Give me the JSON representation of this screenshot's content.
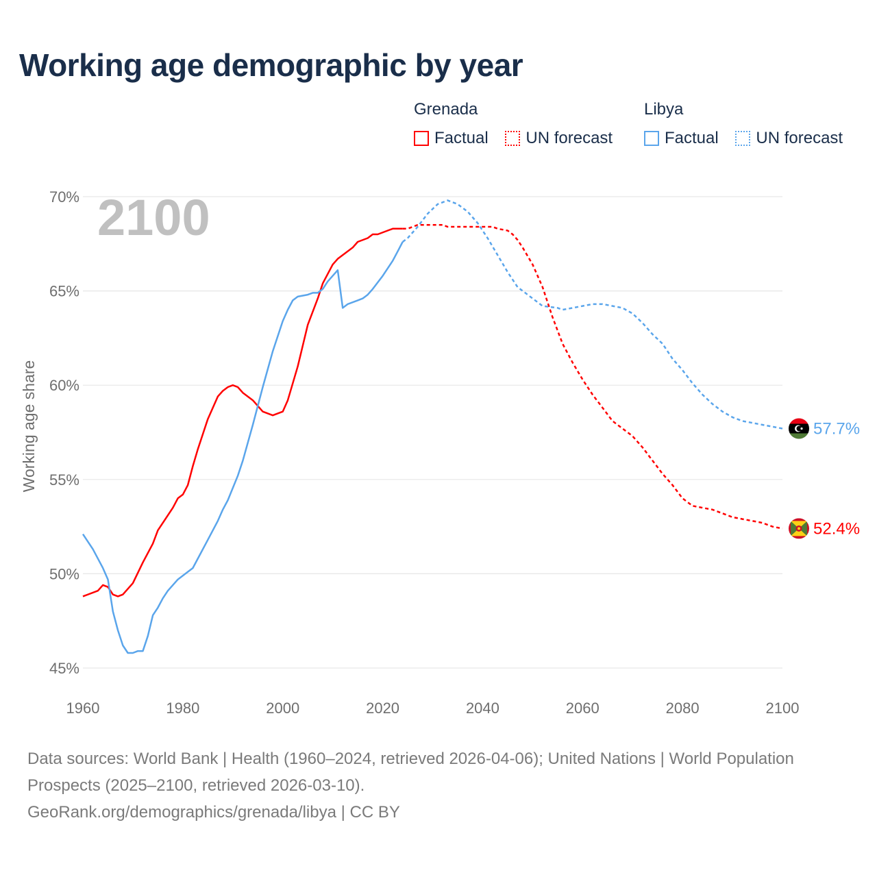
{
  "title": "Working age demographic by year",
  "legend": {
    "groups": [
      {
        "name": "Grenada",
        "color": "#ff0000",
        "factual_label": "Factual",
        "forecast_label": "UN forecast"
      },
      {
        "name": "Libya",
        "color": "#5aa5eb",
        "factual_label": "Factual",
        "forecast_label": "UN forecast"
      }
    ]
  },
  "year_overlay": "2100",
  "footer": {
    "sources": "Data sources: World Bank | Health (1960–2024, retrieved 2026-04-06); United Nations | World Population Prospects (2025–2100, retrieved 2026-03-10).",
    "attribution": "GeoRank.org/demographics/grenada/libya | CC BY"
  },
  "chart_data": {
    "type": "line",
    "title": "Working age demographic by year",
    "xlabel": "",
    "ylabel": "Working age share",
    "xlim": [
      1960,
      2100
    ],
    "ylim": [
      45,
      70
    ],
    "x_ticks": [
      1960,
      1980,
      2000,
      2020,
      2040,
      2060,
      2080,
      2100
    ],
    "x_tick_labels": [
      "1960",
      "1980",
      "2000",
      "2020",
      "2040",
      "2060",
      "2080",
      "2100"
    ],
    "y_ticks": [
      45,
      50,
      55,
      60,
      65,
      70
    ],
    "y_tick_labels": [
      "45%",
      "50%",
      "55%",
      "60%",
      "65%",
      "70%"
    ],
    "grid": true,
    "legend_position": "top-right",
    "series": [
      {
        "name": "Grenada",
        "color": "#ff0000",
        "end_label": "52.4%",
        "factual": [
          [
            1960,
            48.8
          ],
          [
            1963,
            49.1
          ],
          [
            1964,
            49.4
          ],
          [
            1965,
            49.3
          ],
          [
            1966,
            48.9
          ],
          [
            1967,
            48.8
          ],
          [
            1968,
            48.9
          ],
          [
            1969,
            49.2
          ],
          [
            1970,
            49.5
          ],
          [
            1972,
            50.6
          ],
          [
            1974,
            51.6
          ],
          [
            1975,
            52.3
          ],
          [
            1977,
            53.1
          ],
          [
            1978,
            53.5
          ],
          [
            1979,
            54.0
          ],
          [
            1980,
            54.2
          ],
          [
            1981,
            54.7
          ],
          [
            1982,
            55.7
          ],
          [
            1983,
            56.6
          ],
          [
            1985,
            58.2
          ],
          [
            1986,
            58.8
          ],
          [
            1987,
            59.4
          ],
          [
            1988,
            59.7
          ],
          [
            1989,
            59.9
          ],
          [
            1990,
            60.0
          ],
          [
            1991,
            59.9
          ],
          [
            1992,
            59.6
          ],
          [
            1994,
            59.2
          ],
          [
            1996,
            58.6
          ],
          [
            1998,
            58.4
          ],
          [
            2000,
            58.6
          ],
          [
            2001,
            59.2
          ],
          [
            2003,
            61.0
          ],
          [
            2005,
            63.2
          ],
          [
            2007,
            64.6
          ],
          [
            2008,
            65.4
          ],
          [
            2010,
            66.4
          ],
          [
            2011,
            66.7
          ],
          [
            2013,
            67.1
          ],
          [
            2014,
            67.3
          ],
          [
            2015,
            67.6
          ],
          [
            2017,
            67.8
          ],
          [
            2018,
            68.0
          ],
          [
            2019,
            68.0
          ],
          [
            2021,
            68.2
          ],
          [
            2022,
            68.3
          ],
          [
            2024,
            68.3
          ]
        ],
        "forecast": [
          [
            2024,
            68.3
          ],
          [
            2025,
            68.3
          ],
          [
            2026,
            68.4
          ],
          [
            2027,
            68.5
          ],
          [
            2030,
            68.5
          ],
          [
            2032,
            68.5
          ],
          [
            2033,
            68.4
          ],
          [
            2040,
            68.4
          ],
          [
            2042,
            68.4
          ],
          [
            2043,
            68.3
          ],
          [
            2045,
            68.2
          ],
          [
            2046,
            68.0
          ],
          [
            2047,
            67.7
          ],
          [
            2048,
            67.3
          ],
          [
            2050,
            66.4
          ],
          [
            2052,
            65.2
          ],
          [
            2054,
            63.6
          ],
          [
            2056,
            62.2
          ],
          [
            2058,
            61.2
          ],
          [
            2060,
            60.3
          ],
          [
            2062,
            59.5
          ],
          [
            2064,
            58.8
          ],
          [
            2066,
            58.1
          ],
          [
            2068,
            57.7
          ],
          [
            2070,
            57.3
          ],
          [
            2072,
            56.7
          ],
          [
            2074,
            56.0
          ],
          [
            2076,
            55.3
          ],
          [
            2078,
            54.7
          ],
          [
            2080,
            54.0
          ],
          [
            2082,
            53.6
          ],
          [
            2084,
            53.5
          ],
          [
            2086,
            53.4
          ],
          [
            2088,
            53.2
          ],
          [
            2090,
            53.0
          ],
          [
            2092,
            52.9
          ],
          [
            2094,
            52.8
          ],
          [
            2096,
            52.7
          ],
          [
            2098,
            52.5
          ],
          [
            2100,
            52.4
          ]
        ]
      },
      {
        "name": "Libya",
        "color": "#5aa5eb",
        "end_label": "57.7%",
        "factual": [
          [
            1960,
            52.1
          ],
          [
            1962,
            51.3
          ],
          [
            1964,
            50.3
          ],
          [
            1965,
            49.7
          ],
          [
            1966,
            48.0
          ],
          [
            1967,
            47.0
          ],
          [
            1968,
            46.2
          ],
          [
            1969,
            45.8
          ],
          [
            1970,
            45.8
          ],
          [
            1971,
            45.9
          ],
          [
            1972,
            45.9
          ],
          [
            1973,
            46.7
          ],
          [
            1974,
            47.8
          ],
          [
            1975,
            48.2
          ],
          [
            1976,
            48.7
          ],
          [
            1977,
            49.1
          ],
          [
            1979,
            49.7
          ],
          [
            1981,
            50.1
          ],
          [
            1982,
            50.3
          ],
          [
            1983,
            50.8
          ],
          [
            1985,
            51.8
          ],
          [
            1987,
            52.8
          ],
          [
            1988,
            53.4
          ],
          [
            1989,
            53.9
          ],
          [
            1991,
            55.2
          ],
          [
            1992,
            56.0
          ],
          [
            1994,
            57.9
          ],
          [
            1996,
            59.9
          ],
          [
            1998,
            61.8
          ],
          [
            2000,
            63.4
          ],
          [
            2001,
            64.0
          ],
          [
            2002,
            64.5
          ],
          [
            2003,
            64.7
          ],
          [
            2005,
            64.8
          ],
          [
            2006,
            64.9
          ],
          [
            2007,
            64.9
          ],
          [
            2008,
            65.1
          ],
          [
            2009,
            65.5
          ],
          [
            2010,
            65.8
          ],
          [
            2011,
            66.1
          ],
          [
            2012,
            64.1
          ],
          [
            2013,
            64.3
          ],
          [
            2015,
            64.5
          ],
          [
            2016,
            64.6
          ],
          [
            2017,
            64.8
          ],
          [
            2018,
            65.1
          ],
          [
            2020,
            65.8
          ],
          [
            2022,
            66.6
          ],
          [
            2023,
            67.1
          ],
          [
            2024,
            67.6
          ]
        ],
        "forecast": [
          [
            2024,
            67.6
          ],
          [
            2025,
            67.8
          ],
          [
            2027,
            68.4
          ],
          [
            2029,
            69.1
          ],
          [
            2031,
            69.6
          ],
          [
            2033,
            69.8
          ],
          [
            2035,
            69.6
          ],
          [
            2037,
            69.2
          ],
          [
            2039,
            68.6
          ],
          [
            2041,
            67.8
          ],
          [
            2043,
            66.9
          ],
          [
            2045,
            66.0
          ],
          [
            2047,
            65.2
          ],
          [
            2049,
            64.8
          ],
          [
            2051,
            64.4
          ],
          [
            2052,
            64.2
          ],
          [
            2055,
            64.1
          ],
          [
            2056,
            64.0
          ],
          [
            2058,
            64.1
          ],
          [
            2060,
            64.2
          ],
          [
            2062,
            64.3
          ],
          [
            2064,
            64.3
          ],
          [
            2066,
            64.2
          ],
          [
            2068,
            64.1
          ],
          [
            2070,
            63.8
          ],
          [
            2072,
            63.3
          ],
          [
            2074,
            62.7
          ],
          [
            2076,
            62.2
          ],
          [
            2078,
            61.4
          ],
          [
            2080,
            60.8
          ],
          [
            2082,
            60.1
          ],
          [
            2084,
            59.5
          ],
          [
            2086,
            59.0
          ],
          [
            2088,
            58.6
          ],
          [
            2090,
            58.3
          ],
          [
            2092,
            58.1
          ],
          [
            2094,
            58.0
          ],
          [
            2096,
            57.9
          ],
          [
            2098,
            57.8
          ],
          [
            2100,
            57.7
          ]
        ]
      }
    ]
  }
}
